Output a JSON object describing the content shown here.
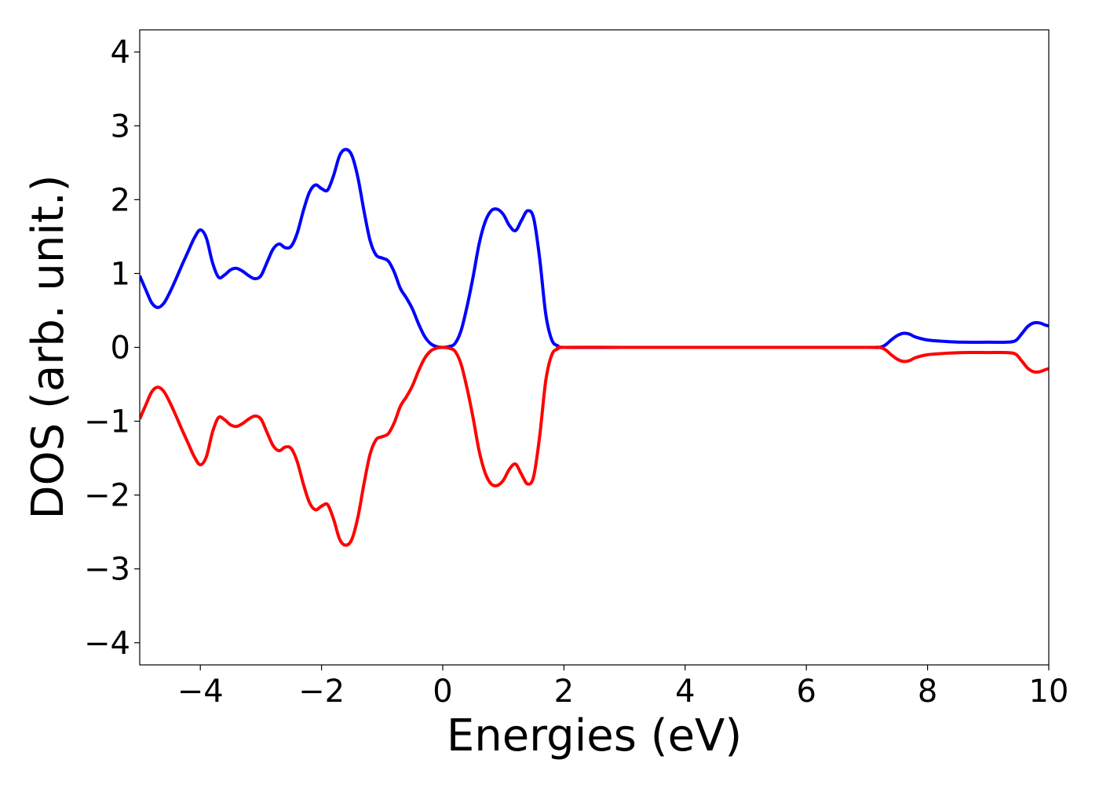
{
  "chart_data": {
    "type": "line",
    "title": "",
    "xlabel": "Energies (eV)",
    "ylabel": "DOS (arb. unit.)",
    "xlim": [
      -5,
      10
    ],
    "ylim": [
      -4.3,
      4.3
    ],
    "xticks": [
      -4,
      -2,
      0,
      2,
      4,
      6,
      8,
      10
    ],
    "xtick_labels": [
      "−4",
      "−2",
      "0",
      "2",
      "4",
      "6",
      "8",
      "10"
    ],
    "yticks": [
      4,
      3,
      2,
      1,
      0,
      -1,
      -2,
      -3,
      -4
    ],
    "ytick_labels": [
      "4",
      "3",
      "2",
      "1",
      "0",
      "−1",
      "−2",
      "−3",
      "−4"
    ],
    "grid": false,
    "legend": "none",
    "series": [
      {
        "color": "#0000ff",
        "points": [
          [
            -5.0,
            0.97
          ],
          [
            -4.9,
            0.78
          ],
          [
            -4.8,
            0.6
          ],
          [
            -4.7,
            0.54
          ],
          [
            -4.6,
            0.6
          ],
          [
            -4.5,
            0.75
          ],
          [
            -4.4,
            0.93
          ],
          [
            -4.3,
            1.12
          ],
          [
            -4.2,
            1.3
          ],
          [
            -4.1,
            1.48
          ],
          [
            -4.0,
            1.59
          ],
          [
            -3.9,
            1.48
          ],
          [
            -3.8,
            1.15
          ],
          [
            -3.7,
            0.95
          ],
          [
            -3.6,
            0.98
          ],
          [
            -3.5,
            1.05
          ],
          [
            -3.4,
            1.07
          ],
          [
            -3.3,
            1.03
          ],
          [
            -3.2,
            0.97
          ],
          [
            -3.1,
            0.93
          ],
          [
            -3.0,
            0.97
          ],
          [
            -2.9,
            1.15
          ],
          [
            -2.8,
            1.33
          ],
          [
            -2.7,
            1.4
          ],
          [
            -2.6,
            1.35
          ],
          [
            -2.5,
            1.37
          ],
          [
            -2.4,
            1.55
          ],
          [
            -2.3,
            1.85
          ],
          [
            -2.2,
            2.1
          ],
          [
            -2.1,
            2.2
          ],
          [
            -2.0,
            2.15
          ],
          [
            -1.9,
            2.13
          ],
          [
            -1.8,
            2.33
          ],
          [
            -1.7,
            2.6
          ],
          [
            -1.6,
            2.68
          ],
          [
            -1.5,
            2.6
          ],
          [
            -1.4,
            2.3
          ],
          [
            -1.3,
            1.85
          ],
          [
            -1.2,
            1.45
          ],
          [
            -1.1,
            1.25
          ],
          [
            -1.0,
            1.21
          ],
          [
            -0.9,
            1.17
          ],
          [
            -0.8,
            1.02
          ],
          [
            -0.7,
            0.8
          ],
          [
            -0.6,
            0.67
          ],
          [
            -0.5,
            0.52
          ],
          [
            -0.4,
            0.32
          ],
          [
            -0.3,
            0.15
          ],
          [
            -0.2,
            0.05
          ],
          [
            -0.1,
            0.01
          ],
          [
            0.0,
            0.0
          ],
          [
            0.1,
            0.01
          ],
          [
            0.2,
            0.05
          ],
          [
            0.3,
            0.22
          ],
          [
            0.4,
            0.55
          ],
          [
            0.5,
            0.95
          ],
          [
            0.6,
            1.4
          ],
          [
            0.7,
            1.7
          ],
          [
            0.8,
            1.85
          ],
          [
            0.9,
            1.87
          ],
          [
            1.0,
            1.8
          ],
          [
            1.1,
            1.65
          ],
          [
            1.2,
            1.58
          ],
          [
            1.3,
            1.72
          ],
          [
            1.4,
            1.85
          ],
          [
            1.5,
            1.75
          ],
          [
            1.6,
            1.2
          ],
          [
            1.7,
            0.45
          ],
          [
            1.8,
            0.1
          ],
          [
            1.9,
            0.02
          ],
          [
            2.0,
            0.0
          ],
          [
            3.0,
            0.0
          ],
          [
            4.0,
            0.0
          ],
          [
            5.0,
            0.0
          ],
          [
            6.0,
            0.0
          ],
          [
            7.0,
            0.0
          ],
          [
            7.2,
            0.0
          ],
          [
            7.3,
            0.03
          ],
          [
            7.4,
            0.1
          ],
          [
            7.5,
            0.16
          ],
          [
            7.6,
            0.19
          ],
          [
            7.7,
            0.18
          ],
          [
            7.8,
            0.14
          ],
          [
            8.0,
            0.1
          ],
          [
            8.3,
            0.08
          ],
          [
            8.6,
            0.07
          ],
          [
            9.0,
            0.07
          ],
          [
            9.3,
            0.07
          ],
          [
            9.45,
            0.09
          ],
          [
            9.55,
            0.18
          ],
          [
            9.65,
            0.28
          ],
          [
            9.75,
            0.33
          ],
          [
            9.85,
            0.33
          ],
          [
            9.95,
            0.3
          ],
          [
            10.0,
            0.29
          ]
        ]
      },
      {
        "color": "#ff0000",
        "points": [
          [
            -5.0,
            -0.97
          ],
          [
            -4.9,
            -0.78
          ],
          [
            -4.8,
            -0.6
          ],
          [
            -4.7,
            -0.54
          ],
          [
            -4.6,
            -0.6
          ],
          [
            -4.5,
            -0.75
          ],
          [
            -4.4,
            -0.93
          ],
          [
            -4.3,
            -1.12
          ],
          [
            -4.2,
            -1.3
          ],
          [
            -4.1,
            -1.48
          ],
          [
            -4.0,
            -1.59
          ],
          [
            -3.9,
            -1.48
          ],
          [
            -3.8,
            -1.15
          ],
          [
            -3.7,
            -0.95
          ],
          [
            -3.6,
            -0.98
          ],
          [
            -3.5,
            -1.05
          ],
          [
            -3.4,
            -1.07
          ],
          [
            -3.3,
            -1.03
          ],
          [
            -3.2,
            -0.97
          ],
          [
            -3.1,
            -0.93
          ],
          [
            -3.0,
            -0.97
          ],
          [
            -2.9,
            -1.15
          ],
          [
            -2.8,
            -1.33
          ],
          [
            -2.7,
            -1.4
          ],
          [
            -2.6,
            -1.35
          ],
          [
            -2.5,
            -1.37
          ],
          [
            -2.4,
            -1.55
          ],
          [
            -2.3,
            -1.85
          ],
          [
            -2.2,
            -2.1
          ],
          [
            -2.1,
            -2.2
          ],
          [
            -2.0,
            -2.15
          ],
          [
            -1.9,
            -2.13
          ],
          [
            -1.8,
            -2.33
          ],
          [
            -1.7,
            -2.6
          ],
          [
            -1.6,
            -2.68
          ],
          [
            -1.5,
            -2.6
          ],
          [
            -1.4,
            -2.3
          ],
          [
            -1.3,
            -1.85
          ],
          [
            -1.2,
            -1.45
          ],
          [
            -1.1,
            -1.25
          ],
          [
            -1.0,
            -1.21
          ],
          [
            -0.9,
            -1.17
          ],
          [
            -0.8,
            -1.02
          ],
          [
            -0.7,
            -0.8
          ],
          [
            -0.6,
            -0.67
          ],
          [
            -0.5,
            -0.52
          ],
          [
            -0.4,
            -0.32
          ],
          [
            -0.3,
            -0.15
          ],
          [
            -0.2,
            -0.05
          ],
          [
            -0.1,
            -0.01
          ],
          [
            0.0,
            0.0
          ],
          [
            0.1,
            -0.01
          ],
          [
            0.2,
            -0.05
          ],
          [
            0.3,
            -0.22
          ],
          [
            0.4,
            -0.55
          ],
          [
            0.5,
            -0.95
          ],
          [
            0.6,
            -1.4
          ],
          [
            0.7,
            -1.7
          ],
          [
            0.8,
            -1.85
          ],
          [
            0.9,
            -1.87
          ],
          [
            1.0,
            -1.8
          ],
          [
            1.1,
            -1.65
          ],
          [
            1.2,
            -1.58
          ],
          [
            1.3,
            -1.72
          ],
          [
            1.4,
            -1.85
          ],
          [
            1.5,
            -1.75
          ],
          [
            1.6,
            -1.2
          ],
          [
            1.7,
            -0.45
          ],
          [
            1.8,
            -0.1
          ],
          [
            1.9,
            -0.02
          ],
          [
            2.0,
            0.0
          ],
          [
            3.0,
            0.0
          ],
          [
            4.0,
            0.0
          ],
          [
            5.0,
            0.0
          ],
          [
            6.0,
            0.0
          ],
          [
            7.0,
            0.0
          ],
          [
            7.2,
            0.0
          ],
          [
            7.3,
            -0.03
          ],
          [
            7.4,
            -0.1
          ],
          [
            7.5,
            -0.16
          ],
          [
            7.6,
            -0.19
          ],
          [
            7.7,
            -0.18
          ],
          [
            7.8,
            -0.14
          ],
          [
            8.0,
            -0.1
          ],
          [
            8.3,
            -0.08
          ],
          [
            8.6,
            -0.07
          ],
          [
            9.0,
            -0.07
          ],
          [
            9.3,
            -0.07
          ],
          [
            9.45,
            -0.09
          ],
          [
            9.55,
            -0.18
          ],
          [
            9.65,
            -0.28
          ],
          [
            9.75,
            -0.33
          ],
          [
            9.85,
            -0.33
          ],
          [
            9.95,
            -0.3
          ],
          [
            10.0,
            -0.29
          ]
        ]
      }
    ]
  }
}
